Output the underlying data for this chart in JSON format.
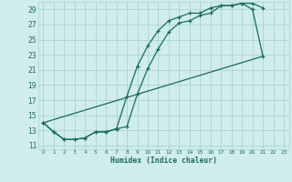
{
  "xlabel": "Humidex (Indice chaleur)",
  "background_color": "#d0ecec",
  "grid_color": "#a8d4d4",
  "line_color": "#1a6b5a",
  "xlim": [
    -0.5,
    23.5
  ],
  "ylim": [
    10.5,
    30.0
  ],
  "yticks": [
    11,
    13,
    15,
    17,
    19,
    21,
    23,
    25,
    27,
    29
  ],
  "xticks": [
    0,
    1,
    2,
    3,
    4,
    5,
    6,
    7,
    8,
    9,
    10,
    11,
    12,
    13,
    14,
    15,
    16,
    17,
    18,
    19,
    20,
    21,
    22,
    23
  ],
  "line1_x": [
    0,
    1,
    2,
    3,
    4,
    5,
    6,
    7,
    8,
    9,
    10,
    11,
    12,
    13,
    14,
    15,
    16,
    17,
    18,
    19,
    20,
    21
  ],
  "line1_y": [
    14.0,
    12.8,
    11.8,
    11.8,
    12.0,
    12.8,
    12.8,
    13.2,
    13.5,
    17.8,
    21.2,
    23.8,
    26.0,
    27.2,
    27.5,
    28.2,
    28.5,
    29.5,
    29.5,
    29.8,
    29.8,
    29.2
  ],
  "line2_x": [
    0,
    1,
    2,
    3,
    4,
    5,
    6,
    7,
    8,
    9,
    10,
    11,
    12,
    13,
    14,
    15,
    16,
    17,
    18,
    19,
    20,
    21
  ],
  "line2_y": [
    14.0,
    12.8,
    11.8,
    11.8,
    12.0,
    12.8,
    12.8,
    13.2,
    17.5,
    21.5,
    24.2,
    26.2,
    27.5,
    28.0,
    28.5,
    28.5,
    29.2,
    29.5,
    29.5,
    29.8,
    29.0,
    22.8
  ],
  "line3_x": [
    0,
    21
  ],
  "line3_y": [
    14.0,
    22.8
  ]
}
